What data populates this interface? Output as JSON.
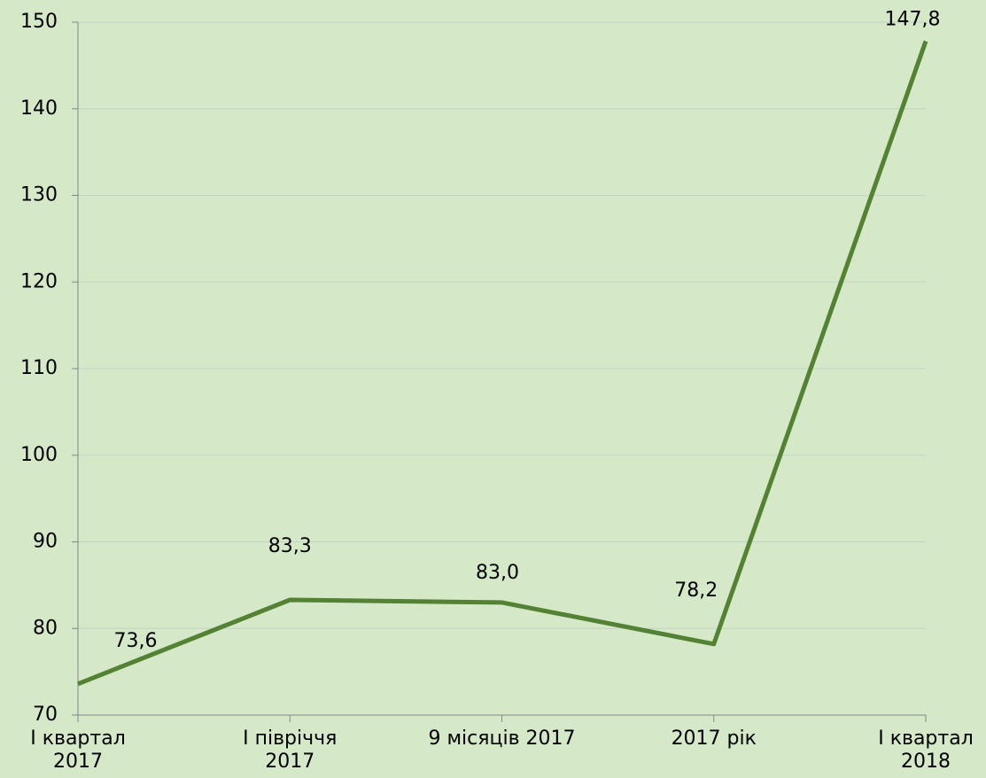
{
  "chart_data": {
    "type": "line",
    "categories": [
      "I квартал\n2017",
      "I півріччя\n2017",
      "9 місяців 2017",
      "2017 рік",
      "I квартал\n2018"
    ],
    "series": [
      {
        "color": "#548235",
        "values": [
          73.6,
          83.3,
          83.0,
          78.2,
          147.8
        ],
        "value_labels": [
          "73,6",
          "83,3",
          "83,0",
          "78,2",
          "147,8"
        ]
      }
    ],
    "ylim": [
      70,
      150
    ],
    "yticks": [
      70,
      80,
      90,
      100,
      110,
      120,
      130,
      140,
      150
    ],
    "grid": true
  }
}
